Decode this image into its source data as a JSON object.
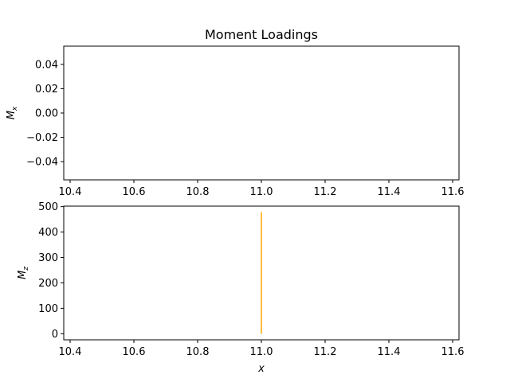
{
  "chart_data": [
    {
      "type": "line",
      "title": "Moment Loadings",
      "xlabel": "",
      "ylabel": "M",
      "ylabel_sub": "x",
      "xlim": [
        10.38,
        11.62
      ],
      "ylim": [
        -0.055,
        0.055
      ],
      "x_ticks": [
        "10.4",
        "10.6",
        "10.8",
        "11.0",
        "11.2",
        "11.4",
        "11.6"
      ],
      "y_ticks": [
        "0.04",
        "0.02",
        "0.00",
        "−0.02",
        "−0.04"
      ],
      "series": []
    },
    {
      "type": "line",
      "title": "",
      "xlabel": "x",
      "ylabel": "M",
      "ylabel_sub": "z",
      "xlim": [
        10.38,
        11.62
      ],
      "ylim": [
        -24,
        502
      ],
      "x_ticks": [
        "10.4",
        "10.6",
        "10.8",
        "11.0",
        "11.2",
        "11.4",
        "11.6"
      ],
      "y_ticks": [
        "500",
        "400",
        "300",
        "200",
        "100",
        "0"
      ],
      "series": [
        {
          "name": "Mz",
          "color": "#ffa500",
          "x": [
            11.0,
            11.0
          ],
          "y": [
            0,
            478
          ]
        }
      ]
    }
  ]
}
